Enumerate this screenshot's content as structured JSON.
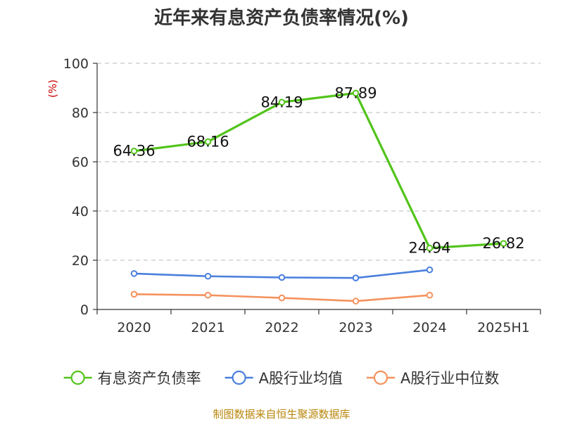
{
  "chart_data": {
    "type": "line",
    "title": "近年来有息资产负债率情况(%)",
    "ylabel": "(%)",
    "xlabel": "",
    "categories": [
      "2020",
      "2021",
      "2022",
      "2023",
      "2024",
      "2025H1"
    ],
    "ylim": [
      0,
      100
    ],
    "yticks": [
      0,
      20,
      40,
      60,
      80,
      100
    ],
    "grid": true,
    "legend_position": "bottom",
    "series": [
      {
        "name": "有息资产负债率",
        "color": "#52c41a",
        "values": [
          64.36,
          68.16,
          84.19,
          87.89,
          24.94,
          26.82
        ],
        "labels": [
          "64.36",
          "68.16",
          "84.19",
          "87.89",
          "24.94",
          "26.82"
        ]
      },
      {
        "name": "A股行业均值",
        "color": "#4a7fdc",
        "values": [
          14.6,
          13.5,
          13.0,
          12.8,
          16.1,
          null
        ]
      },
      {
        "name": "A股行业中位数",
        "color": "#f5925e",
        "values": [
          6.2,
          5.8,
          4.7,
          3.4,
          5.8,
          null
        ]
      }
    ],
    "source": "制图数据来自恒生聚源数据库"
  }
}
